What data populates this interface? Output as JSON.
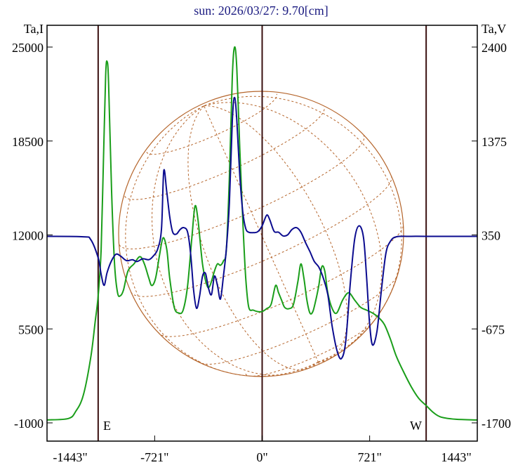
{
  "chart_data": {
    "type": "line",
    "title": "sun: 2026/03/27: 9.70[cm]",
    "left_axis_label": "Ta,I",
    "right_axis_label": "Ta,V",
    "left_ticks": [
      "25000",
      "18500",
      "12000",
      "5500",
      "-1000"
    ],
    "right_ticks": [
      "2400",
      "1375",
      "350",
      "-675",
      "-1700"
    ],
    "x_ticks": [
      "-1443\"",
      "-721\"",
      "0\"",
      "721\"",
      "1443\""
    ],
    "x_tick_values": [
      -1443,
      -721,
      0,
      721,
      1443
    ],
    "left_tick_values": [
      25000,
      18500,
      12000,
      5500,
      -1000
    ],
    "right_tick_values": [
      2400,
      1375,
      350,
      -675,
      -1700
    ],
    "xlim": [
      -1443,
      1443
    ],
    "ylim_left": [
      -1000,
      25000
    ],
    "ylim_right": [
      -1700,
      2400
    ],
    "limb_markers": [
      -1100,
      0,
      1100
    ],
    "east_label": "E",
    "west_label": "W",
    "colors": {
      "I": "#1a9e1a",
      "V": "#0b0b8f",
      "disk": "#b5652b",
      "frame": "#000000",
      "limb": "#3a1010",
      "title": "#1a1a80"
    },
    "series": [
      {
        "color_key": "I",
        "points": [
          [
            -1443,
            -800
          ],
          [
            -1300,
            -700
          ],
          [
            -1250,
            -200
          ],
          [
            -1200,
            900
          ],
          [
            -1150,
            3500
          ],
          [
            -1120,
            6000
          ],
          [
            -1100,
            7800
          ],
          [
            -1080,
            11000
          ],
          [
            -1065,
            17000
          ],
          [
            -1050,
            23000
          ],
          [
            -1040,
            24000
          ],
          [
            -1030,
            22500
          ],
          [
            -1010,
            15000
          ],
          [
            -990,
            10000
          ],
          [
            -970,
            8000
          ],
          [
            -950,
            7800
          ],
          [
            -930,
            8200
          ],
          [
            -900,
            9500
          ],
          [
            -860,
            10000
          ],
          [
            -820,
            10500
          ],
          [
            -790,
            10000
          ],
          [
            -760,
            9000
          ],
          [
            -740,
            8500
          ],
          [
            -715,
            9000
          ],
          [
            -690,
            10500
          ],
          [
            -665,
            11800
          ],
          [
            -640,
            11000
          ],
          [
            -620,
            9000
          ],
          [
            -590,
            7000
          ],
          [
            -560,
            6600
          ],
          [
            -530,
            6800
          ],
          [
            -500,
            8500
          ],
          [
            -470,
            12000
          ],
          [
            -450,
            14000
          ],
          [
            -430,
            13000
          ],
          [
            -400,
            10000
          ],
          [
            -370,
            8500
          ],
          [
            -350,
            8500
          ],
          [
            -320,
            9500
          ],
          [
            -300,
            10000
          ],
          [
            -280,
            9900
          ],
          [
            -260,
            10200
          ],
          [
            -240,
            11000
          ],
          [
            -220,
            16000
          ],
          [
            -200,
            23000
          ],
          [
            -185,
            25000
          ],
          [
            -170,
            23500
          ],
          [
            -150,
            18000
          ],
          [
            -130,
            13000
          ],
          [
            -110,
            9000
          ],
          [
            -90,
            7000
          ],
          [
            -60,
            6800
          ],
          [
            -30,
            6700
          ],
          [
            0,
            6700
          ],
          [
            30,
            6900
          ],
          [
            60,
            7200
          ],
          [
            90,
            8500
          ],
          [
            110,
            8000
          ],
          [
            130,
            7500
          ],
          [
            150,
            7000
          ],
          [
            180,
            6900
          ],
          [
            210,
            7200
          ],
          [
            240,
            8800
          ],
          [
            260,
            10000
          ],
          [
            280,
            9000
          ],
          [
            300,
            7500
          ],
          [
            320,
            6600
          ],
          [
            340,
            6700
          ],
          [
            360,
            7500
          ],
          [
            380,
            8500
          ],
          [
            400,
            9800
          ],
          [
            420,
            9500
          ],
          [
            440,
            8000
          ],
          [
            470,
            6900
          ],
          [
            500,
            6600
          ],
          [
            540,
            7500
          ],
          [
            580,
            8000
          ],
          [
            620,
            7500
          ],
          [
            660,
            7000
          ],
          [
            700,
            6800
          ],
          [
            740,
            6600
          ],
          [
            780,
            6300
          ],
          [
            820,
            5800
          ],
          [
            860,
            4800
          ],
          [
            900,
            3600
          ],
          [
            950,
            2500
          ],
          [
            1000,
            1500
          ],
          [
            1050,
            700
          ],
          [
            1100,
            200
          ],
          [
            1150,
            -300
          ],
          [
            1200,
            -600
          ],
          [
            1300,
            -750
          ],
          [
            1443,
            -800
          ]
        ]
      },
      {
        "color_key": "V",
        "points": [
          [
            -1443,
            335
          ],
          [
            -1200,
            330
          ],
          [
            -1150,
            300
          ],
          [
            -1100,
            100
          ],
          [
            -1080,
            -80
          ],
          [
            -1060,
            -200
          ],
          [
            -1040,
            -60
          ],
          [
            -1010,
            70
          ],
          [
            -980,
            140
          ],
          [
            -950,
            120
          ],
          [
            -910,
            70
          ],
          [
            -870,
            80
          ],
          [
            -840,
            60
          ],
          [
            -800,
            90
          ],
          [
            -760,
            80
          ],
          [
            -730,
            120
          ],
          [
            -700,
            200
          ],
          [
            -675,
            420
          ],
          [
            -660,
            1050
          ],
          [
            -640,
            820
          ],
          [
            -620,
            550
          ],
          [
            -600,
            380
          ],
          [
            -575,
            360
          ],
          [
            -550,
            410
          ],
          [
            -525,
            430
          ],
          [
            -500,
            380
          ],
          [
            -480,
            150
          ],
          [
            -460,
            -250
          ],
          [
            -440,
            -450
          ],
          [
            -420,
            -320
          ],
          [
            -400,
            -100
          ],
          [
            -380,
            -70
          ],
          [
            -360,
            -230
          ],
          [
            -340,
            -300
          ],
          [
            -320,
            -100
          ],
          [
            -300,
            -200
          ],
          [
            -280,
            -350
          ],
          [
            -260,
            -100
          ],
          [
            -240,
            200
          ],
          [
            -220,
            700
          ],
          [
            -200,
            1600
          ],
          [
            -185,
            1850
          ],
          [
            -170,
            1600
          ],
          [
            -150,
            1000
          ],
          [
            -130,
            600
          ],
          [
            -110,
            420
          ],
          [
            -90,
            380
          ],
          [
            -60,
            375
          ],
          [
            -30,
            385
          ],
          [
            0,
            450
          ],
          [
            30,
            565
          ],
          [
            50,
            520
          ],
          [
            80,
            390
          ],
          [
            110,
            380
          ],
          [
            140,
            340
          ],
          [
            170,
            350
          ],
          [
            200,
            410
          ],
          [
            230,
            430
          ],
          [
            260,
            380
          ],
          [
            290,
            270
          ],
          [
            320,
            170
          ],
          [
            350,
            60
          ],
          [
            380,
            0
          ],
          [
            410,
            -120
          ],
          [
            440,
            -300
          ],
          [
            470,
            -650
          ],
          [
            500,
            -900
          ],
          [
            530,
            -1000
          ],
          [
            560,
            -820
          ],
          [
            590,
            -200
          ],
          [
            620,
            300
          ],
          [
            650,
            450
          ],
          [
            680,
            320
          ],
          [
            700,
            -100
          ],
          [
            720,
            -600
          ],
          [
            740,
            -850
          ],
          [
            770,
            -700
          ],
          [
            800,
            -250
          ],
          [
            830,
            150
          ],
          [
            860,
            280
          ],
          [
            900,
            330
          ],
          [
            1000,
            335
          ],
          [
            1100,
            335
          ],
          [
            1443,
            335
          ]
        ]
      }
    ]
  }
}
